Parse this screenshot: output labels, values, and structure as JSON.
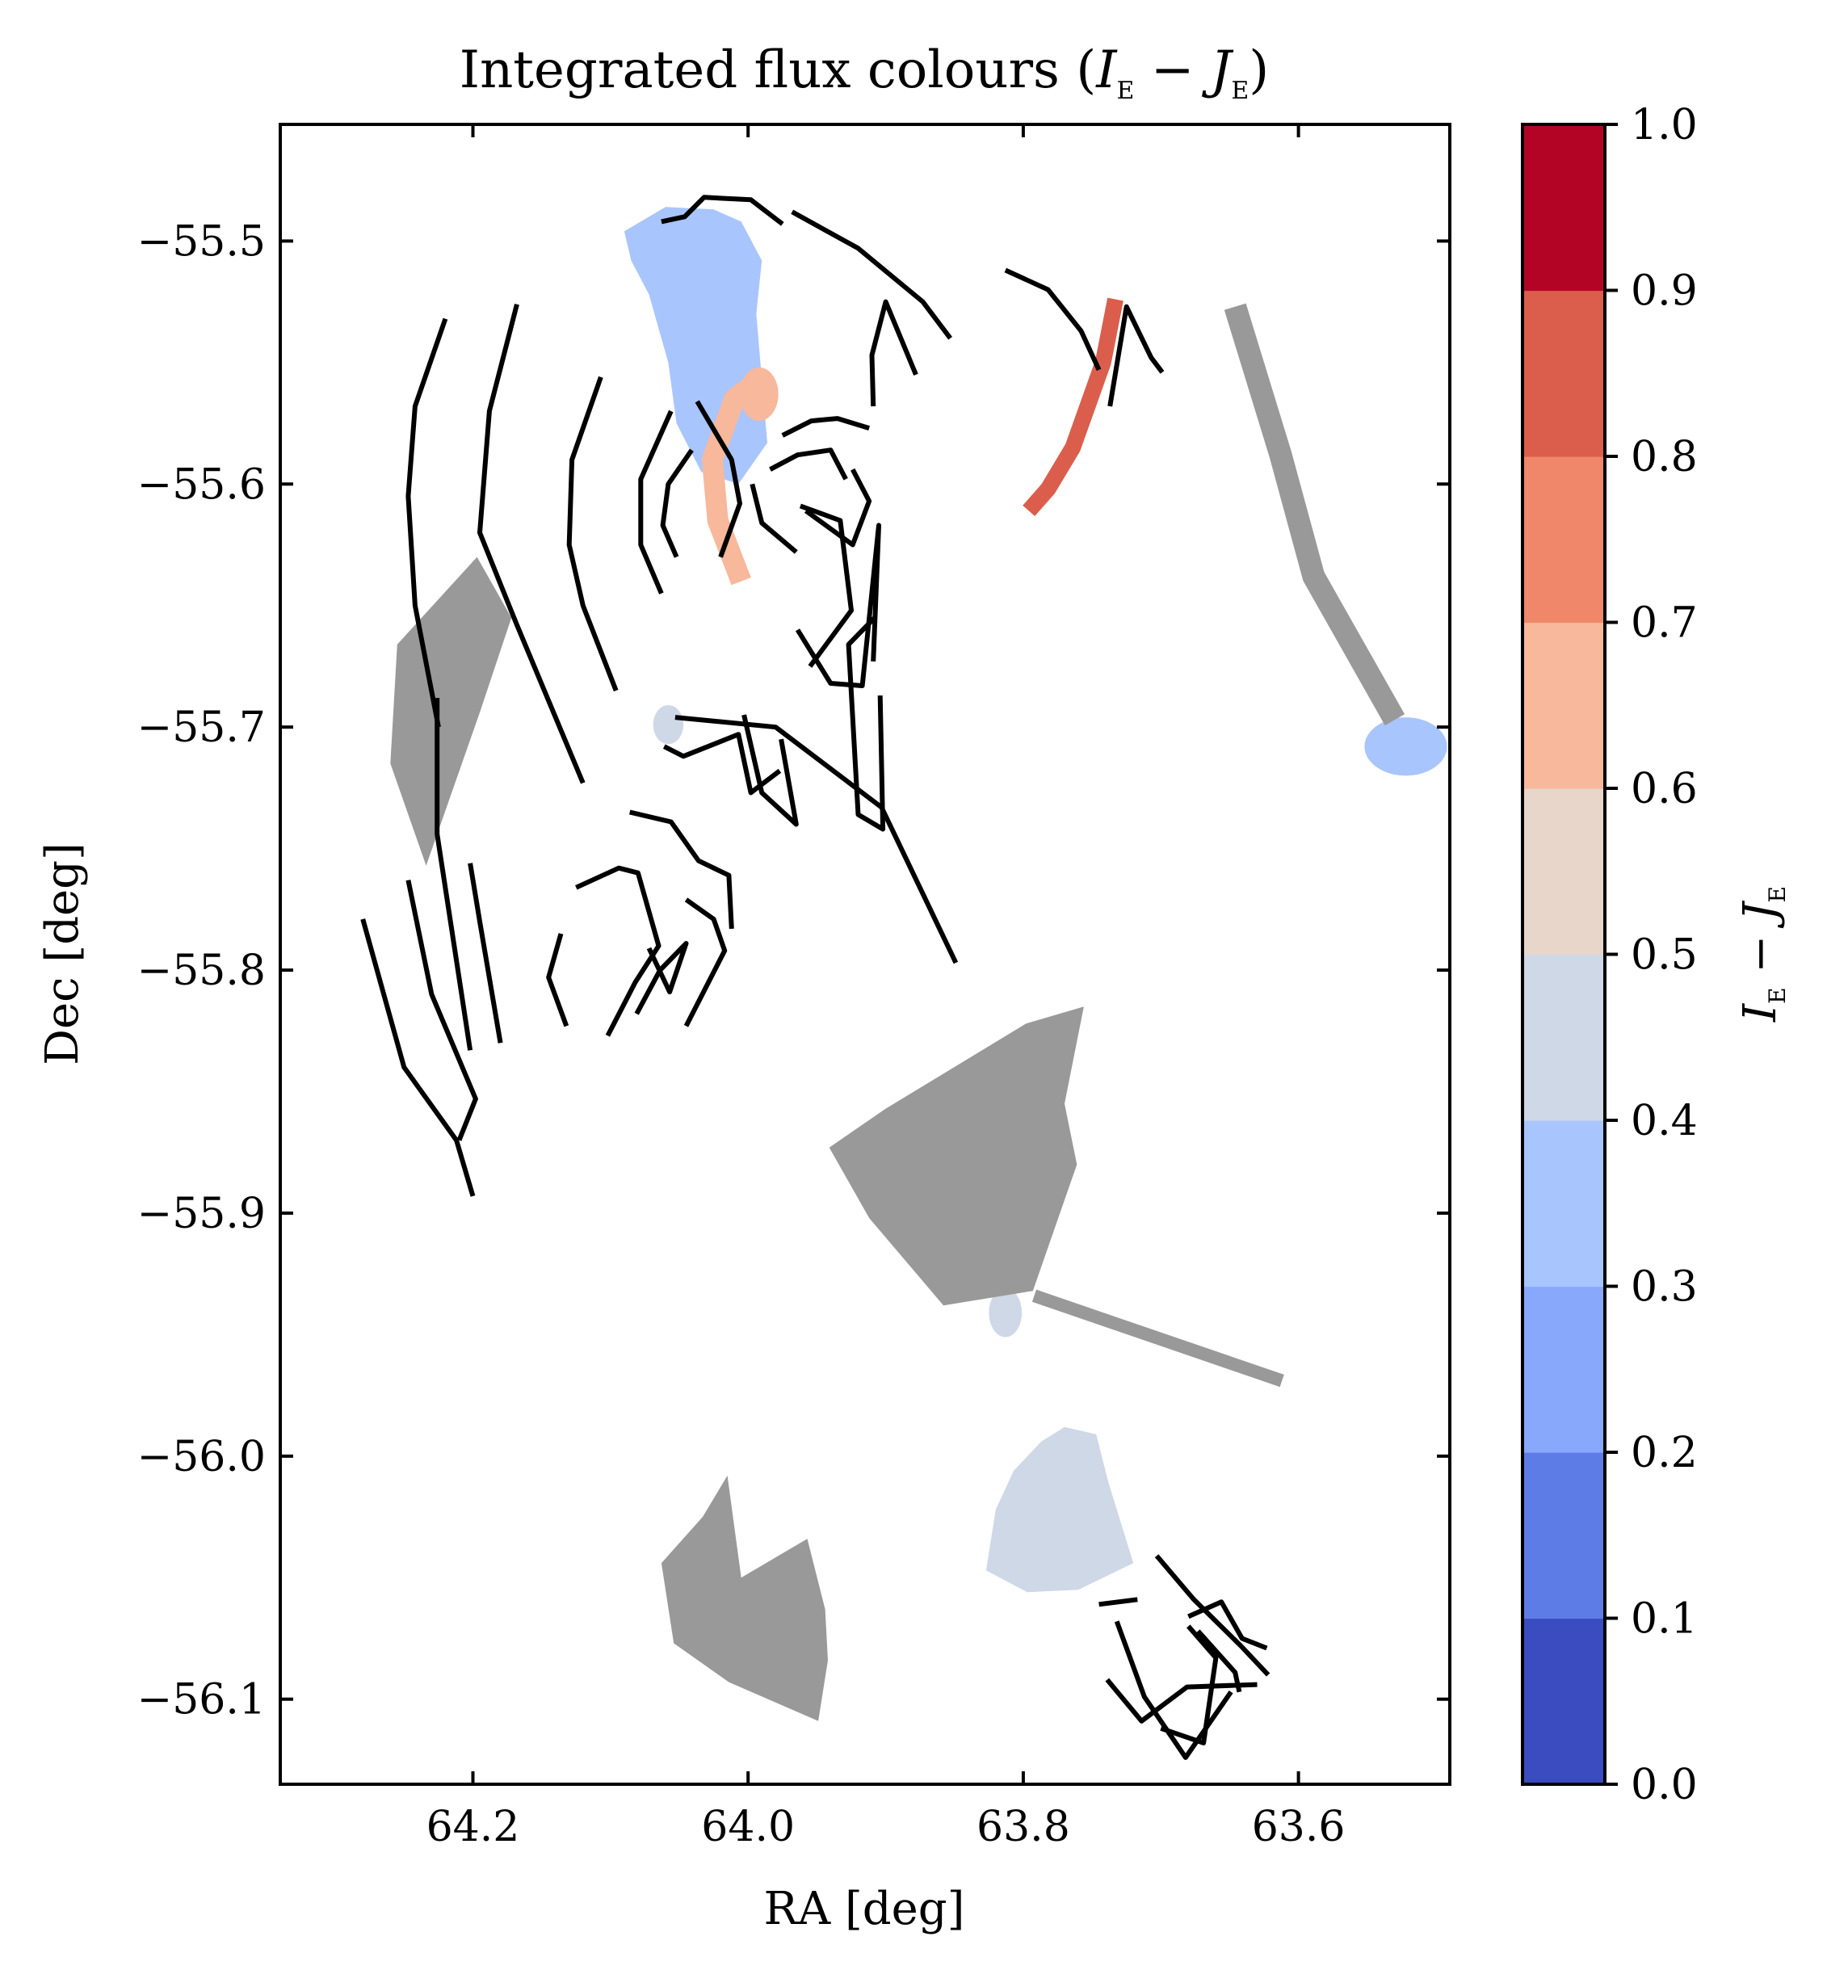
{
  "chart_data": {
    "type": "scatter",
    "title_main": "Integrated flux colours (",
    "title_I": "I",
    "title_sub1": "E",
    "title_minus": " − ",
    "title_J": "J",
    "title_sub2": "E",
    "title_close": ")",
    "xlabel": "RA [deg]",
    "ylabel": "Dec [deg]",
    "x_inverted": true,
    "xlim": [
      64.34,
      63.49
    ],
    "ylim": [
      -56.135,
      -55.452
    ],
    "x_ticks": [
      {
        "value": 64.2,
        "label": "64.2"
      },
      {
        "value": 64.0,
        "label": "64.0"
      },
      {
        "value": 63.8,
        "label": "63.8"
      },
      {
        "value": 63.6,
        "label": "63.6"
      }
    ],
    "y_ticks": [
      {
        "value": -55.5,
        "label": "−55.5"
      },
      {
        "value": -55.6,
        "label": "−55.6"
      },
      {
        "value": -55.7,
        "label": "−55.7"
      },
      {
        "value": -55.8,
        "label": "−55.8"
      },
      {
        "value": -55.9,
        "label": "−55.9"
      },
      {
        "value": -56.0,
        "label": "−56.0"
      },
      {
        "value": -56.1,
        "label": "−56.1"
      }
    ],
    "colorbar": {
      "label_I": "I",
      "label_sub1": "E",
      "label_minus": " − ",
      "label_J": "J",
      "label_sub2": "E",
      "range": [
        0.0,
        1.0
      ],
      "ticks": [
        {
          "value": 0.0,
          "label": "0.0"
        },
        {
          "value": 0.1,
          "label": "0.1"
        },
        {
          "value": 0.2,
          "label": "0.2"
        },
        {
          "value": 0.3,
          "label": "0.3"
        },
        {
          "value": 0.4,
          "label": "0.4"
        },
        {
          "value": 0.5,
          "label": "0.5"
        },
        {
          "value": 0.6,
          "label": "0.6"
        },
        {
          "value": 0.7,
          "label": "0.7"
        },
        {
          "value": 0.8,
          "label": "0.8"
        },
        {
          "value": 0.9,
          "label": "0.9"
        },
        {
          "value": 1.0,
          "label": "1.0"
        }
      ],
      "bands": [
        "#3b4cc0",
        "#5d7ce6",
        "#88a9fb",
        "#a9c5fe",
        "#cfd8e7",
        "#e8d6cb",
        "#f7b89c",
        "#f0876b",
        "#db5e4c",
        "#b40426"
      ]
    },
    "no_colour_fill": "#999999",
    "contour_color": "#000000",
    "regions": [
      {
        "id": "blue-wedge-north",
        "colour_value": 0.35,
        "fill": "#a9c5fe",
        "pts": [
          [
            64.09,
            -55.496
          ],
          [
            64.06,
            -55.486
          ],
          [
            64.025,
            -55.487
          ],
          [
            64.005,
            -55.492
          ],
          [
            63.99,
            -55.508
          ],
          [
            63.994,
            -55.53
          ],
          [
            63.99,
            -55.557
          ],
          [
            63.986,
            -55.583
          ],
          [
            64.007,
            -55.6
          ],
          [
            64.034,
            -55.595
          ],
          [
            64.052,
            -55.575
          ],
          [
            64.058,
            -55.55
          ],
          [
            64.072,
            -55.522
          ],
          [
            64.085,
            -55.508
          ]
        ]
      },
      {
        "id": "blue-blob-east",
        "colour_value": 0.45,
        "fill": "#cfd8e7",
        "ellipse": [
          64.058,
          -55.699,
          0.011,
          0.008
        ]
      },
      {
        "id": "blue-blob-right",
        "colour_value": 0.35,
        "fill": "#a9c5fe",
        "ellipse": [
          63.522,
          -55.708,
          0.03,
          0.012
        ]
      },
      {
        "id": "blue-blob-small",
        "colour_value": 0.45,
        "fill": "#cfd8e7",
        "ellipse": [
          63.813,
          -55.941,
          0.012,
          0.01
        ]
      },
      {
        "id": "blue-patch-south",
        "colour_value": 0.45,
        "fill": "#cfd8e7",
        "pts": [
          [
            63.72,
            -56.044
          ],
          [
            63.738,
            -56.011
          ],
          [
            63.747,
            -55.991
          ],
          [
            63.77,
            -55.988
          ],
          [
            63.787,
            -55.994
          ],
          [
            63.807,
            -56.006
          ],
          [
            63.82,
            -56.022
          ],
          [
            63.827,
            -56.047
          ],
          [
            63.797,
            -56.056
          ],
          [
            63.76,
            -56.055
          ]
        ]
      },
      {
        "id": "grey-west",
        "colour_value": null,
        "fill": "#999999",
        "pts": [
          [
            64.255,
            -55.666
          ],
          [
            64.197,
            -55.63
          ],
          [
            64.172,
            -55.655
          ],
          [
            64.195,
            -55.694
          ],
          [
            64.234,
            -55.757
          ],
          [
            64.26,
            -55.715
          ]
        ]
      },
      {
        "id": "grey-centre",
        "colour_value": null,
        "fill": "#999999",
        "pts": [
          [
            63.941,
            -55.873
          ],
          [
            63.912,
            -55.902
          ],
          [
            63.858,
            -55.938
          ],
          [
            63.793,
            -55.932
          ],
          [
            63.761,
            -55.88
          ],
          [
            63.77,
            -55.855
          ],
          [
            63.756,
            -55.815
          ],
          [
            63.798,
            -55.822
          ],
          [
            63.9,
            -55.857
          ]
        ]
      },
      {
        "id": "grey-south",
        "colour_value": null,
        "fill": "#999999",
        "pts": [
          [
            63.949,
            -56.109
          ],
          [
            64.014,
            -56.093
          ],
          [
            64.054,
            -56.077
          ],
          [
            64.063,
            -56.044
          ],
          [
            64.033,
            -56.025
          ],
          [
            64.015,
            -56.008
          ],
          [
            64.005,
            -56.05
          ],
          [
            63.957,
            -56.034
          ],
          [
            63.944,
            -56.063
          ],
          [
            63.942,
            -56.084
          ]
        ]
      }
    ],
    "strokes": [
      {
        "id": "orange-arc",
        "colour_value": 0.65,
        "stroke": "#f7b89c",
        "width": 26,
        "pts": [
          [
            63.989,
            -55.556
          ],
          [
            64.01,
            -55.565
          ],
          [
            64.026,
            -55.59
          ],
          [
            64.022,
            -55.615
          ],
          [
            64.005,
            -55.64
          ]
        ]
      },
      {
        "id": "orange-cap",
        "colour_value": 0.65,
        "fill": "#f7b89c",
        "ellipse": [
          63.992,
          -55.563,
          0.014,
          0.011
        ]
      },
      {
        "id": "red-arc",
        "colour_value": 0.85,
        "stroke": "#db5e4c",
        "width": 20,
        "pts": [
          [
            63.733,
            -55.524
          ],
          [
            63.742,
            -55.55
          ],
          [
            63.764,
            -55.585
          ],
          [
            63.782,
            -55.602
          ],
          [
            63.796,
            -55.611
          ]
        ]
      },
      {
        "id": "grey-streak",
        "colour_value": null,
        "stroke": "#999999",
        "width": 28,
        "pts": [
          [
            63.646,
            -55.527
          ],
          [
            63.613,
            -55.588
          ],
          [
            63.589,
            -55.638
          ],
          [
            63.53,
            -55.697
          ]
        ]
      },
      {
        "id": "grey-bar",
        "colour_value": null,
        "stroke": "#999999",
        "width": 16,
        "pts": [
          [
            63.792,
            -55.934
          ],
          [
            63.612,
            -55.969
          ]
        ]
      }
    ],
    "contours": [
      [
        [
          64.063,
          -55.492
        ],
        [
          64.046,
          -55.49
        ],
        [
          64.032,
          -55.482
        ],
        [
          63.998,
          -55.483
        ],
        [
          63.975,
          -55.493
        ]
      ],
      [
        [
          63.968,
          -55.488
        ],
        [
          63.92,
          -55.503
        ],
        [
          63.873,
          -55.525
        ],
        [
          63.853,
          -55.54
        ]
      ],
      [
        [
          63.813,
          -55.512
        ],
        [
          63.782,
          -55.52
        ],
        [
          63.758,
          -55.537
        ],
        [
          63.745,
          -55.553
        ]
      ],
      [
        [
          64.22,
          -55.532
        ],
        [
          64.242,
          -55.568
        ],
        [
          64.247,
          -55.605
        ],
        [
          64.242,
          -55.65
        ],
        [
          64.225,
          -55.7
        ]
      ],
      [
        [
          64.168,
          -55.526
        ],
        [
          64.188,
          -55.57
        ],
        [
          64.195,
          -55.62
        ],
        [
          64.168,
          -55.658
        ],
        [
          64.12,
          -55.723
        ]
      ],
      [
        [
          64.107,
          -55.556
        ],
        [
          64.128,
          -55.59
        ],
        [
          64.13,
          -55.625
        ],
        [
          64.12,
          -55.65
        ],
        [
          64.096,
          -55.685
        ]
      ],
      [
        [
          64.037,
          -55.566
        ],
        [
          64.012,
          -55.59
        ],
        [
          64.006,
          -55.608
        ],
        [
          64.02,
          -55.63
        ]
      ],
      [
        [
          64.056,
          -55.57
        ],
        [
          64.078,
          -55.598
        ],
        [
          64.078,
          -55.625
        ],
        [
          64.063,
          -55.645
        ]
      ],
      [
        [
          64.041,
          -55.586
        ],
        [
          64.058,
          -55.6
        ],
        [
          64.062,
          -55.617
        ],
        [
          64.052,
          -55.63
        ]
      ],
      [
        [
          63.975,
          -55.58
        ],
        [
          63.954,
          -55.574
        ],
        [
          63.935,
          -55.573
        ],
        [
          63.912,
          -55.577
        ]
      ],
      [
        [
          63.958,
          -55.611
        ],
        [
          63.924,
          -55.625
        ],
        [
          63.912,
          -55.607
        ],
        [
          63.924,
          -55.594
        ]
      ],
      [
        [
          63.984,
          -55.594
        ],
        [
          63.964,
          -55.588
        ],
        [
          63.94,
          -55.586
        ],
        [
          63.929,
          -55.598
        ]
      ],
      [
        [
          63.965,
          -55.628
        ],
        [
          63.99,
          -55.616
        ],
        [
          63.997,
          -55.6
        ]
      ],
      [
        [
          63.955,
          -55.675
        ],
        [
          63.925,
          -55.652
        ],
        [
          63.933,
          -55.615
        ],
        [
          63.962,
          -55.609
        ]
      ],
      [
        [
          63.964,
          -55.66
        ],
        [
          63.94,
          -55.682
        ],
        [
          63.917,
          -55.683
        ],
        [
          63.905,
          -55.617
        ],
        [
          63.909,
          -55.673
        ]
      ],
      [
        [
          64.053,
          -55.696
        ],
        [
          63.98,
          -55.7
        ],
        [
          63.903,
          -55.733
        ],
        [
          63.849,
          -55.797
        ]
      ],
      [
        [
          64.003,
          -55.695
        ],
        [
          63.99,
          -55.727
        ],
        [
          63.965,
          -55.74
        ],
        [
          63.976,
          -55.705
        ]
      ],
      [
        [
          63.908,
          -55.655
        ],
        [
          63.927,
          -55.666
        ],
        [
          63.92,
          -55.736
        ],
        [
          63.902,
          -55.742
        ],
        [
          63.904,
          -55.687
        ]
      ],
      [
        [
          64.226,
          -55.688
        ],
        [
          64.226,
          -55.744
        ],
        [
          64.202,
          -55.833
        ]
      ],
      [
        [
          64.202,
          -55.756
        ],
        [
          64.195,
          -55.78
        ],
        [
          64.18,
          -55.83
        ]
      ],
      [
        [
          64.247,
          -55.763
        ],
        [
          64.23,
          -55.81
        ],
        [
          64.198,
          -55.853
        ],
        [
          64.21,
          -55.87
        ]
      ],
      [
        [
          64.136,
          -55.785
        ],
        [
          64.145,
          -55.803
        ],
        [
          64.132,
          -55.823
        ]
      ],
      [
        [
          64.28,
          -55.779
        ],
        [
          64.25,
          -55.84
        ],
        [
          64.212,
          -55.87
        ],
        [
          64.2,
          -55.893
        ]
      ],
      [
        [
          64.125,
          -55.766
        ],
        [
          64.094,
          -55.758
        ],
        [
          64.08,
          -55.76
        ],
        [
          64.065,
          -55.79
        ],
        [
          64.082,
          -55.805
        ],
        [
          64.102,
          -55.827
        ]
      ],
      [
        [
          64.072,
          -55.791
        ],
        [
          64.057,
          -55.809
        ],
        [
          64.045,
          -55.789
        ],
        [
          64.064,
          -55.8
        ],
        [
          64.081,
          -55.818
        ]
      ],
      [
        [
          64.045,
          -55.771
        ],
        [
          64.025,
          -55.779
        ],
        [
          64.017,
          -55.792
        ],
        [
          64.045,
          -55.823
        ]
      ],
      [
        [
          64.061,
          -55.708
        ],
        [
          64.047,
          -55.712
        ],
        [
          64.007,
          -55.703
        ],
        [
          63.998,
          -55.727
        ],
        [
          63.977,
          -55.718
        ]
      ],
      [
        [
          64.086,
          -55.735
        ],
        [
          64.056,
          -55.739
        ],
        [
          64.036,
          -55.755
        ],
        [
          64.014,
          -55.761
        ],
        [
          64.012,
          -55.783
        ]
      ],
      [
        [
          63.878,
          -55.555
        ],
        [
          63.9,
          -55.525
        ],
        [
          63.91,
          -55.547
        ],
        [
          63.909,
          -55.568
        ]
      ],
      [
        [
          63.737,
          -55.568
        ],
        [
          63.725,
          -55.527
        ],
        [
          63.707,
          -55.548
        ],
        [
          63.699,
          -55.554
        ]
      ],
      [
        [
          63.703,
          -56.041
        ],
        [
          63.676,
          -56.059
        ],
        [
          63.642,
          -56.078
        ],
        [
          63.622,
          -56.09
        ]
      ],
      [
        [
          63.68,
          -56.066
        ],
        [
          63.656,
          -56.06
        ],
        [
          63.641,
          -56.075
        ],
        [
          63.623,
          -56.079
        ]
      ],
      [
        [
          63.673,
          -56.072
        ],
        [
          63.646,
          -56.089
        ],
        [
          63.643,
          -56.097
        ]
      ],
      [
        [
          63.732,
          -56.068
        ],
        [
          63.712,
          -56.099
        ],
        [
          63.682,
          -56.124
        ],
        [
          63.649,
          -56.097
        ]
      ],
      [
        [
          63.739,
          -56.092
        ],
        [
          63.714,
          -56.109
        ],
        [
          63.681,
          -56.095
        ],
        [
          63.63,
          -56.094
        ]
      ],
      [
        [
          63.7,
          -56.112
        ],
        [
          63.669,
          -56.118
        ],
        [
          63.66,
          -56.083
        ],
        [
          63.68,
          -56.07
        ]
      ],
      [
        [
          63.717,
          -56.059
        ],
        [
          63.745,
          -56.061
        ]
      ]
    ]
  }
}
